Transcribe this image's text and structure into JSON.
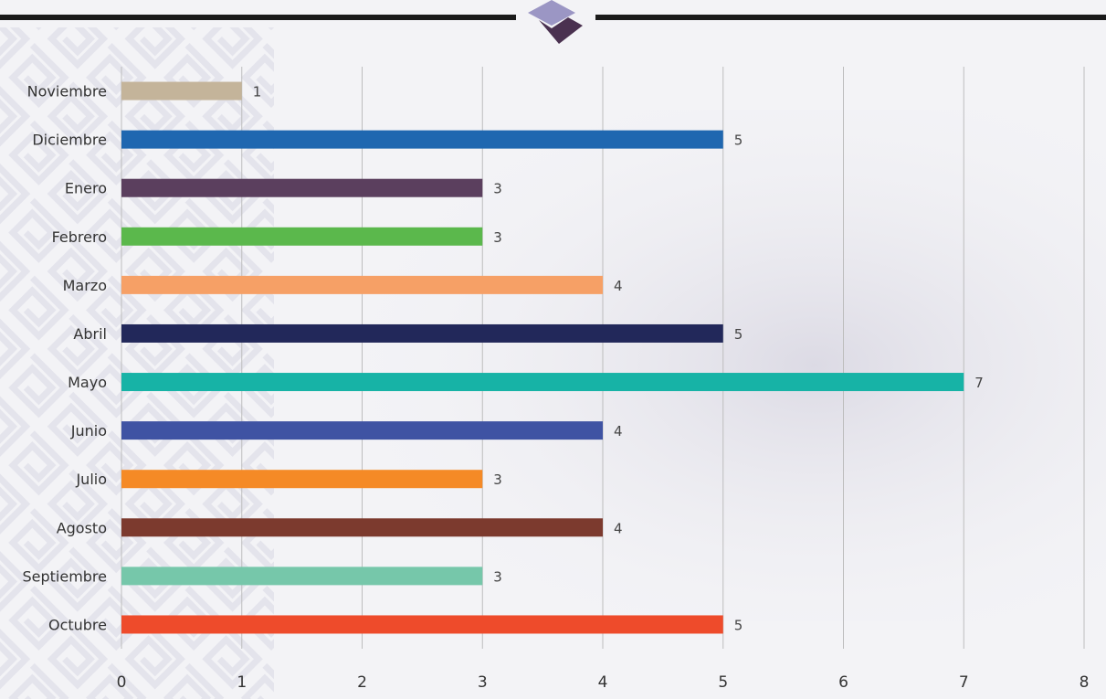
{
  "chart_data": {
    "type": "bar",
    "orientation": "horizontal",
    "categories": [
      "Noviembre",
      "Diciembre",
      "Enero",
      "Febrero",
      "Marzo",
      "Abril",
      "Mayo",
      "Junio",
      "Julio",
      "Agosto",
      "Septiembre",
      "Octubre"
    ],
    "values": [
      1,
      5,
      3,
      3,
      4,
      5,
      7,
      4,
      3,
      4,
      3,
      5
    ],
    "bar_colors": [
      "#c4b49a",
      "#1f67b0",
      "#5b3f5e",
      "#5bb84c",
      "#f6a066",
      "#22285a",
      "#17b3a6",
      "#3f53a3",
      "#f58a26",
      "#7c3a2e",
      "#76c7aa",
      "#ee4b2b"
    ],
    "title": "",
    "xlabel": "",
    "ylabel": "",
    "xlim": [
      0,
      8
    ],
    "xticks": [
      "0",
      "1",
      "2",
      "3",
      "4",
      "5",
      "6",
      "7",
      "8"
    ],
    "grid": true,
    "data_labels": true
  },
  "theme": {
    "header_line_color": "#1a1a1a",
    "logo_light_color": "#9b96c4",
    "logo_dark_color": "#4a3150",
    "grid_color": "#bdbdbd",
    "background_color": "#f3f3f6"
  }
}
